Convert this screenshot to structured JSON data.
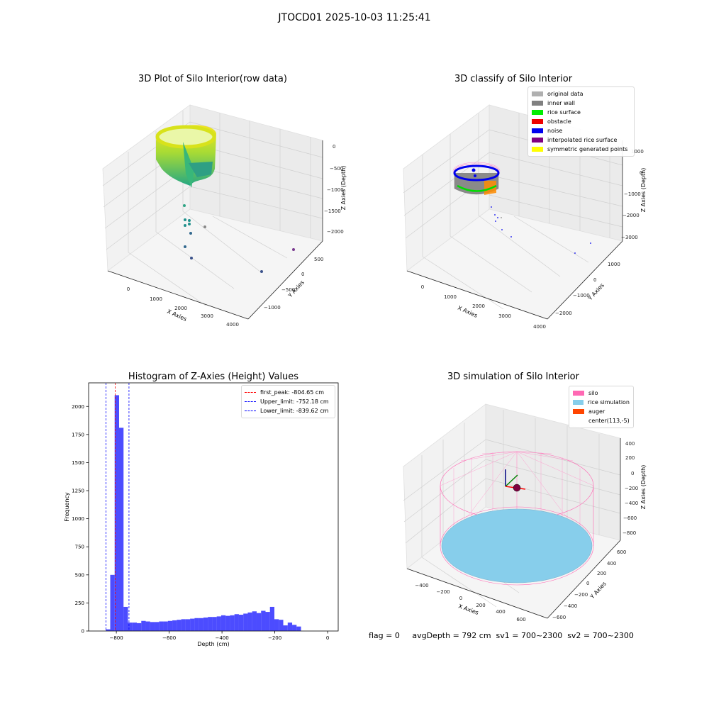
{
  "suptitle": "JTOCD01 2025-10-03 11:25:41",
  "panels": {
    "tl": {
      "title": "3D Plot of Silo Interior(row data)",
      "xlabel": "X Axies",
      "ylabel": "Y Axies",
      "zlabel": "Z Axies (Depth)",
      "xticks": [
        "0",
        "1000",
        "2000",
        "3000",
        "4000"
      ],
      "yticks": [
        "500",
        "0",
        "−500",
        "−1000"
      ],
      "zticks": [
        "0",
        "−500",
        "−1000",
        "−1500",
        "−2000"
      ]
    },
    "tr": {
      "title": "3D classify of Silo Interior",
      "xlabel": "X Axies",
      "ylabel": "Y Axies",
      "zlabel": "Z Axies (Depth)",
      "xticks": [
        "0",
        "1000",
        "2000",
        "3000",
        "4000"
      ],
      "yticks": [
        "1000",
        "0",
        "−1000",
        "−2000"
      ],
      "zticks": [
        "1000",
        "0",
        "−1000",
        "−2000",
        "−3000"
      ],
      "legend": [
        {
          "label": "original data",
          "color": "#b0b0b0"
        },
        {
          "label": "inner wall",
          "color": "#808080"
        },
        {
          "label": "rice surface",
          "color": "#00ee00"
        },
        {
          "label": "obstacle",
          "color": "#ee0000"
        },
        {
          "label": "noise",
          "color": "#0000ee"
        },
        {
          "label": "interpolated rice surface",
          "color": "#800080"
        },
        {
          "label": "symmetric generated points",
          "color": "#ffff00"
        }
      ]
    },
    "br": {
      "title": "3D simulation of Silo Interior",
      "xlabel": "X Axies",
      "ylabel": "Y Axies",
      "zlabel": "Z Axies (Depth)",
      "xticks": [
        "−400",
        "−200",
        "0",
        "200",
        "400",
        "600"
      ],
      "yticks": [
        "600",
        "400",
        "200",
        "0",
        "−200",
        "−400",
        "−600"
      ],
      "zticks": [
        "400",
        "200",
        "0",
        "−200",
        "−400",
        "−600",
        "−800"
      ],
      "legend": [
        {
          "label": "silo",
          "color": "#ff69b4"
        },
        {
          "label": "rice simulation",
          "color": "#87ceeb"
        },
        {
          "label": "auger",
          "color": "#ff4500"
        },
        {
          "label": "center(113,-5)",
          "color": ""
        }
      ]
    }
  },
  "footer": "flag = 0     avgDepth = 792 cm  sv1 = 700~2300  sv2 = 700~2300",
  "chart_data": [
    {
      "type": "bar",
      "title": "Histogram of Z-Axies (Height) Values",
      "xlabel": "Depth (cm)",
      "ylabel": "Frequency",
      "bar_color": "#0000ff",
      "xlim": [
        -905,
        40
      ],
      "ylim": [
        0,
        2210
      ],
      "xticks": [
        -800,
        -600,
        -400,
        -200,
        0
      ],
      "xtick_labels": [
        "−800",
        "−600",
        "−400",
        "−200",
        "0"
      ],
      "yticks": [
        0,
        250,
        500,
        750,
        1000,
        1250,
        1500,
        1750,
        2000
      ],
      "bin_edges_start": -840,
      "bin_width": 16.8,
      "values": [
        15,
        500,
        2100,
        1810,
        215,
        75,
        75,
        70,
        90,
        85,
        80,
        80,
        85,
        85,
        90,
        95,
        100,
        105,
        105,
        110,
        115,
        115,
        120,
        125,
        125,
        130,
        140,
        135,
        140,
        150,
        145,
        155,
        165,
        175,
        160,
        180,
        170,
        215,
        105,
        100,
        50,
        75,
        55,
        40
      ],
      "vlines": [
        {
          "label": "first_peak: -804.65 cm",
          "x": -804.65,
          "color": "#ff0000"
        },
        {
          "label": "Upper_limit: -752.18 cm",
          "x": -752.18,
          "color": "#0000ff"
        },
        {
          "label": "Lower_limit: -839.62 cm",
          "x": -839.62,
          "color": "#0000ff"
        }
      ]
    }
  ]
}
